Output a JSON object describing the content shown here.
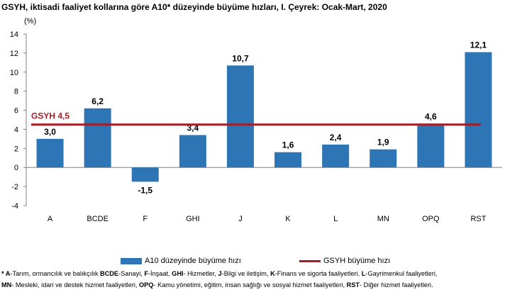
{
  "title": "GSYH, iktisadi faaliyet kollarına göre A10* düzeyinde büyüme hızları, I. Çeyrek: Ocak-Mart, 2020",
  "colors": {
    "bar": "#2e75b6",
    "line": "#a51c24",
    "axis": "#808080",
    "text": "#000000"
  },
  "chart_data": {
    "type": "bar",
    "unit_label": "(%)",
    "categories": [
      "A",
      "BCDE",
      "F",
      "GHI",
      "J",
      "K",
      "L",
      "MN",
      "OPQ",
      "RST"
    ],
    "series": [
      {
        "name": "A10 düzeyinde büyüme hızı",
        "values": [
          3.0,
          6.2,
          -1.5,
          3.4,
          10.7,
          1.6,
          2.4,
          1.9,
          4.6,
          12.1
        ]
      }
    ],
    "value_labels": [
      "3,0",
      "6,2",
      "-1,5",
      "3,4",
      "10,7",
      "1,6",
      "2,4",
      "1,9",
      "4,6",
      "12,1"
    ],
    "reference_line": {
      "name": "GSYH büyüme hızı",
      "value": 4.5,
      "label": "GSYH  4,5"
    },
    "ylim": [
      -4,
      14
    ],
    "yticks": [
      -4,
      -2,
      0,
      2,
      4,
      6,
      8,
      10,
      12,
      14
    ],
    "grid": false,
    "legend_position": "bottom"
  },
  "legend": {
    "bar_label": "A10 düzeyinde büyüme hızı",
    "line_label": "GSYH büyüme hızı"
  },
  "footnote": {
    "line1": [
      {
        "b": "* A"
      },
      {
        "t": "-Tarım, ormancılık ve balıkçılık "
      },
      {
        "b": "BCDE"
      },
      {
        "t": "-Sanayi, "
      },
      {
        "b": "F"
      },
      {
        "t": "-İnşaat, "
      },
      {
        "b": "GHI"
      },
      {
        "t": "- Hizmetler, "
      },
      {
        "b": "J"
      },
      {
        "t": "-Bilgi ve iletişim, "
      },
      {
        "b": "K"
      },
      {
        "t": "-Finans ve sigorta faaliyetleri, "
      },
      {
        "b": "L"
      },
      {
        "t": "-Gayrimenkul faaliyetleri,"
      }
    ],
    "line2": [
      {
        "b": "MN"
      },
      {
        "t": "- Mesleki, idari ve destek hizmet faaliyetleri, "
      },
      {
        "b": "OPQ"
      },
      {
        "t": "- Kamu yönetimi, eğitim, insan sağlığı ve sosyal hizmet faaliyetleri, "
      },
      {
        "b": "RST"
      },
      {
        "t": "- Diğer hizmet faaliyetleri."
      }
    ]
  }
}
